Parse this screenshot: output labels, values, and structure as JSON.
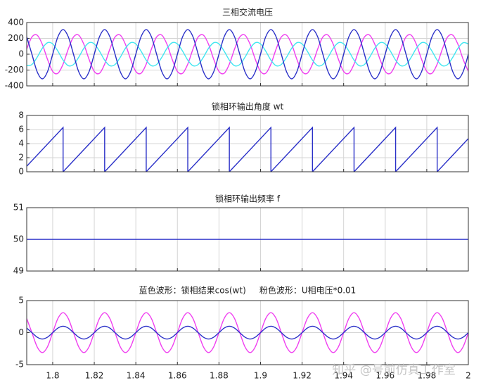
{
  "chart_data": [
    {
      "type": "line",
      "title": "三相交流电压",
      "xlim": [
        1.7875,
        2
      ],
      "ylim": [
        -400,
        400
      ],
      "yticks": [
        -400,
        -200,
        0,
        200,
        400
      ],
      "grid": true,
      "smooth": true,
      "x": [
        1.7875,
        1.79,
        1.7925,
        1.795,
        1.7975,
        1.8,
        1.8025,
        1.805,
        1.8075,
        1.81,
        1.8125,
        1.815,
        1.8175,
        1.82,
        1.8225,
        1.825,
        1.8275,
        1.83,
        1.8325,
        1.835,
        1.8375,
        1.84,
        1.8425,
        1.845,
        1.8475,
        1.85,
        1.8525,
        1.855,
        1.8575,
        1.86,
        1.8625,
        1.865,
        1.8675,
        1.87,
        1.8725,
        1.875,
        1.8775,
        1.88,
        1.8825,
        1.885,
        1.8875,
        1.89,
        1.8925,
        1.895,
        1.8975,
        1.9,
        1.9025,
        1.905,
        1.9075,
        1.91,
        1.9125,
        1.915,
        1.9175,
        1.92,
        1.9225,
        1.925,
        1.9275,
        1.93,
        1.9325,
        1.935,
        1.9375,
        1.94,
        1.9425,
        1.945,
        1.9475,
        1.95,
        1.9525,
        1.955,
        1.9575,
        1.96,
        1.9625,
        1.965,
        1.9675,
        1.97,
        1.9725,
        1.975,
        1.9775,
        1.98,
        1.9825,
        1.985,
        1.9875,
        1.99,
        1.9925,
        1.995,
        1.9975,
        2
      ],
      "series": [
        {
          "color": "#f040f0",
          "values": [
            65,
            217,
            241,
            125,
            -65,
            -217,
            -241,
            -125,
            65,
            217,
            241,
            125,
            -65,
            -217,
            -241,
            -125,
            65,
            217,
            241,
            125,
            -65,
            -217,
            -241,
            -125,
            65,
            217,
            241,
            125,
            -65,
            -217,
            -241,
            -125,
            65,
            217,
            241,
            125,
            -65,
            -217,
            -241,
            -125,
            65,
            217,
            241,
            125,
            -65,
            -217,
            -241,
            -125,
            65,
            217,
            241,
            125,
            -65,
            -217,
            -241,
            -125,
            65,
            217,
            241,
            125,
            -65,
            -217,
            -241,
            -125,
            65,
            217,
            241,
            125,
            -65,
            -217,
            -241,
            -125,
            65,
            217,
            241,
            125,
            -65,
            -217,
            -241,
            -125,
            65,
            217,
            241,
            125,
            -65,
            -217
          ]
        },
        {
          "color": "#40e6f0",
          "values": [
            -145,
            -130,
            -39,
            75,
            145,
            130,
            39,
            -75,
            -145,
            -130,
            -39,
            75,
            145,
            130,
            39,
            -75,
            -145,
            -130,
            -39,
            75,
            145,
            130,
            39,
            -75,
            -145,
            -130,
            -39,
            75,
            145,
            130,
            39,
            -75,
            -145,
            -130,
            -39,
            75,
            145,
            130,
            39,
            -75,
            -145,
            -130,
            -39,
            75,
            145,
            130,
            39,
            -75,
            -145,
            -130,
            -39,
            75,
            145,
            130,
            39,
            -75,
            -145,
            -130,
            -39,
            75,
            145,
            130,
            39,
            -75,
            -145,
            -130,
            -39,
            75,
            145,
            130,
            39,
            -75,
            -145,
            -130,
            -39,
            75,
            145,
            130,
            39,
            -75,
            -145,
            -130,
            -39,
            75,
            145,
            130
          ]
        },
        {
          "color": "#2a30c8",
          "values": [
            220,
            0,
            -220,
            -311,
            -220,
            0,
            220,
            311,
            220,
            0,
            -220,
            -311,
            -220,
            0,
            220,
            311,
            220,
            0,
            -220,
            -311,
            -220,
            0,
            220,
            311,
            220,
            0,
            -220,
            -311,
            -220,
            0,
            220,
            311,
            220,
            0,
            -220,
            -311,
            -220,
            0,
            220,
            311,
            220,
            0,
            -220,
            -311,
            -220,
            0,
            220,
            311,
            220,
            0,
            -220,
            -311,
            -220,
            0,
            220,
            311,
            220,
            0,
            -220,
            -311,
            -220,
            0,
            220,
            311,
            220,
            0,
            -220,
            -311,
            -220,
            0,
            220,
            311,
            220,
            0,
            -220,
            -311,
            -220,
            0,
            220,
            311,
            220,
            0,
            -220,
            -311,
            -220,
            0
          ]
        }
      ]
    },
    {
      "type": "line",
      "title": "锁相环输出角度 wt",
      "xlim": [
        1.7875,
        2
      ],
      "ylim": [
        0,
        8
      ],
      "yticks": [
        0,
        2,
        4,
        6,
        8
      ],
      "grid": true,
      "smooth": false,
      "x": [
        1.7875,
        1.805,
        1.805,
        1.825,
        1.825,
        1.845,
        1.845,
        1.865,
        1.865,
        1.885,
        1.885,
        1.905,
        1.905,
        1.925,
        1.925,
        1.945,
        1.945,
        1.965,
        1.965,
        1.985,
        1.985,
        2
      ],
      "series": [
        {
          "color": "#2a30c8",
          "values": [
            0.785,
            6.283,
            0,
            6.283,
            0,
            6.283,
            0,
            6.283,
            0,
            6.283,
            0,
            6.283,
            0,
            6.283,
            0,
            6.283,
            0,
            6.283,
            0,
            6.283,
            0,
            4.712
          ]
        }
      ]
    },
    {
      "type": "line",
      "title": "锁相环输出频率 f",
      "xlim": [
        1.7875,
        2
      ],
      "ylim": [
        49,
        51
      ],
      "yticks": [
        49,
        50,
        51
      ],
      "grid": true,
      "smooth": false,
      "x": [
        1.7875,
        2
      ],
      "series": [
        {
          "color": "#2a30c8",
          "values": [
            50,
            50
          ]
        }
      ]
    },
    {
      "type": "line",
      "title": "蓝色波形：锁相结果cos(wt)     粉色波形：U相电压*0.01",
      "xlim": [
        1.7875,
        2
      ],
      "ylim": [
        -5,
        5
      ],
      "yticks": [
        -5,
        0,
        5
      ],
      "grid": true,
      "smooth": true,
      "xticks": [
        1.8,
        1.82,
        1.84,
        1.86,
        1.88,
        1.9,
        1.92,
        1.94,
        1.96,
        1.98,
        2
      ],
      "x": [
        1.7875,
        1.79,
        1.7925,
        1.795,
        1.7975,
        1.8,
        1.8025,
        1.805,
        1.8075,
        1.81,
        1.8125,
        1.815,
        1.8175,
        1.82,
        1.8225,
        1.825,
        1.8275,
        1.83,
        1.8325,
        1.835,
        1.8375,
        1.84,
        1.8425,
        1.845,
        1.8475,
        1.85,
        1.8525,
        1.855,
        1.8575,
        1.86,
        1.8625,
        1.865,
        1.8675,
        1.87,
        1.8725,
        1.875,
        1.8775,
        1.88,
        1.8825,
        1.885,
        1.8875,
        1.89,
        1.8925,
        1.895,
        1.8975,
        1.9,
        1.9025,
        1.905,
        1.9075,
        1.91,
        1.9125,
        1.915,
        1.9175,
        1.92,
        1.9225,
        1.925,
        1.9275,
        1.93,
        1.9325,
        1.935,
        1.9375,
        1.94,
        1.9425,
        1.945,
        1.9475,
        1.95,
        1.9525,
        1.955,
        1.9575,
        1.96,
        1.9625,
        1.965,
        1.9675,
        1.97,
        1.9725,
        1.975,
        1.9775,
        1.98,
        1.9825,
        1.985,
        1.9875,
        1.99,
        1.9925,
        1.995,
        1.9975,
        2
      ],
      "series": [
        {
          "color": "#f040f0",
          "values": [
            2.2,
            0,
            -2.2,
            -3.11,
            -2.2,
            0,
            2.2,
            3.11,
            2.2,
            0,
            -2.2,
            -3.11,
            -2.2,
            0,
            2.2,
            3.11,
            2.2,
            0,
            -2.2,
            -3.11,
            -2.2,
            0,
            2.2,
            3.11,
            2.2,
            0,
            -2.2,
            -3.11,
            -2.2,
            0,
            2.2,
            3.11,
            2.2,
            0,
            -2.2,
            -3.11,
            -2.2,
            0,
            2.2,
            3.11,
            2.2,
            0,
            -2.2,
            -3.11,
            -2.2,
            0,
            2.2,
            3.11,
            2.2,
            0,
            -2.2,
            -3.11,
            -2.2,
            0,
            2.2,
            3.11,
            2.2,
            0,
            -2.2,
            -3.11,
            -2.2,
            0,
            2.2,
            3.11,
            2.2,
            0,
            -2.2,
            -3.11,
            -2.2,
            0,
            2.2,
            3.11,
            2.2,
            0,
            -2.2,
            -3.11,
            -2.2,
            0,
            2.2,
            3.11,
            2.2,
            0,
            -2.2,
            -3.11,
            -2.2,
            0
          ]
        },
        {
          "color": "#2a30c8",
          "values": [
            0.71,
            0,
            -0.71,
            -1,
            -0.71,
            0,
            0.71,
            1,
            0.71,
            0,
            -0.71,
            -1,
            -0.71,
            0,
            0.71,
            1,
            0.71,
            0,
            -0.71,
            -1,
            -0.71,
            0,
            0.71,
            1,
            0.71,
            0,
            -0.71,
            -1,
            -0.71,
            0,
            0.71,
            1,
            0.71,
            0,
            -0.71,
            -1,
            -0.71,
            0,
            0.71,
            1,
            0.71,
            0,
            -0.71,
            -1,
            -0.71,
            0,
            0.71,
            1,
            0.71,
            0,
            -0.71,
            -1,
            -0.71,
            0,
            0.71,
            1,
            0.71,
            0,
            -0.71,
            -1,
            -0.71,
            0,
            0.71,
            1,
            0.71,
            0,
            -0.71,
            -1,
            -0.71,
            0,
            0.71,
            1,
            0.71,
            0,
            -0.71,
            -1,
            -0.71,
            0,
            0.71,
            1,
            0.71,
            0,
            -0.71,
            -1,
            -0.71,
            0
          ]
        }
      ]
    }
  ],
  "watermark": "知乎 @号前仿真工作室"
}
